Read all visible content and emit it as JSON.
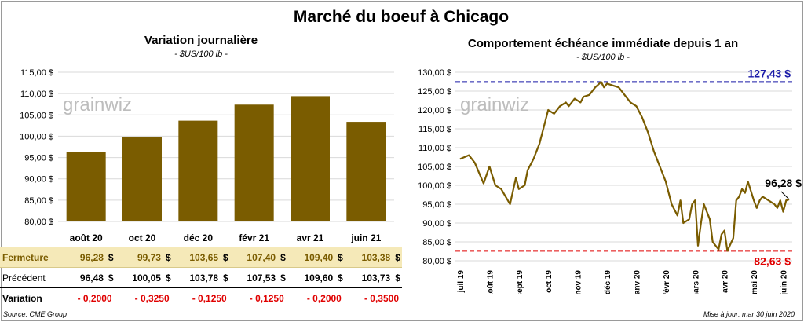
{
  "title": "Marché du boeuf à Chicago",
  "left": {
    "title": "Variation  journalière",
    "unit": "- $US/100 lb -"
  },
  "right": {
    "title": "Comportement  échéance immédiate depuis 1 an",
    "unit": "- $US/100 lb -"
  },
  "watermark": "grainwiz",
  "table": {
    "rows": [
      {
        "label": "Fermeture",
        "values": [
          "96,28",
          "99,73",
          "103,65",
          "107,40",
          "109,40",
          "103,38"
        ],
        "currency": "$"
      },
      {
        "label": "Précédent",
        "values": [
          "96,48",
          "100,05",
          "103,78",
          "107,53",
          "109,60",
          "103,73"
        ],
        "currency": "$"
      },
      {
        "label": "Variation",
        "values": [
          "- 0,2000",
          "- 0,3250",
          "- 0,1250",
          "- 0,1250",
          "- 0,2000",
          "- 0,3500"
        ],
        "currency": ""
      }
    ]
  },
  "footer": {
    "source": "Source: CME Group",
    "update": "Mise à jour: mar 30 juin 2020"
  },
  "colors": {
    "series": "#7a5c00",
    "max_line": "#1a1aa8",
    "min_line": "#e00000"
  },
  "chart_data": [
    {
      "type": "bar",
      "title": "Variation  journalière",
      "ylabel": "- $US/100 lb -",
      "categories": [
        "août 20",
        "oct 20",
        "déc 20",
        "févr 21",
        "avr 21",
        "juin 21"
      ],
      "values": [
        96.28,
        99.73,
        103.65,
        107.4,
        109.4,
        103.38
      ],
      "ylim": [
        80,
        115
      ],
      "yticks": [
        "80,00 $",
        "85,00 $",
        "90,00 $",
        "95,00 $",
        "100,00 $",
        "105,00 $",
        "110,00 $",
        "115,00 $"
      ],
      "grid": true
    },
    {
      "type": "line",
      "title": "Comportement  échéance immédiate depuis 1 an",
      "ylabel": "- $US/100 lb -",
      "ylim": [
        80,
        130
      ],
      "yticks": [
        "80,00 $",
        "85,00 $",
        "90,00 $",
        "95,00 $",
        "100,00 $",
        "105,00 $",
        "110,00 $",
        "115,00 $",
        "120,00 $",
        "125,00 $",
        "130,00 $"
      ],
      "xticks": [
        "juil 19",
        "août 19",
        "sept 19",
        "oct 19",
        "nov 19",
        "déc 19",
        "janv 20",
        "févr 20",
        "mars 20",
        "avr 20",
        "mai 20",
        "juin 20"
      ],
      "max": {
        "value": 127.43,
        "label": "127,43 $"
      },
      "min": {
        "value": 82.63,
        "label": "82,63 $"
      },
      "last": {
        "value": 96.28,
        "label": "96,28 $"
      },
      "grid": true,
      "x": [
        0,
        0.3,
        0.5,
        0.8,
        1.0,
        1.2,
        1.4,
        1.7,
        1.9,
        2.0,
        2.2,
        2.3,
        2.5,
        2.7,
        2.9,
        3.0,
        3.2,
        3.4,
        3.6,
        3.7,
        3.9,
        4.1,
        4.2,
        4.4,
        4.6,
        4.8,
        4.9,
        5.0,
        5.2,
        5.4,
        5.6,
        5.8,
        6.0,
        6.2,
        6.4,
        6.6,
        6.8,
        7.0,
        7.2,
        7.4,
        7.5,
        7.6,
        7.8,
        7.9,
        8.0,
        8.1,
        8.2,
        8.3,
        8.5,
        8.6,
        8.8,
        8.9,
        9.0,
        9.1,
        9.3,
        9.4,
        9.5,
        9.6,
        9.7,
        9.8,
        10.0,
        10.1,
        10.2,
        10.3,
        10.5,
        10.7,
        10.8,
        10.9,
        11.0,
        11.1,
        11.2
      ],
      "y": [
        107,
        108,
        106,
        100.5,
        105,
        100,
        99,
        95,
        102,
        99,
        100,
        104,
        107,
        111,
        117,
        120,
        119,
        121,
        122,
        121,
        123,
        122,
        123.5,
        124,
        126,
        127.43,
        126,
        127,
        126.5,
        126,
        124,
        122,
        121,
        118,
        114,
        109,
        105,
        101,
        95,
        92,
        96,
        90,
        91,
        95,
        96,
        84,
        90,
        95,
        91,
        85,
        83,
        87,
        88,
        82.63,
        86,
        96,
        97,
        99,
        98,
        101,
        96,
        94,
        96,
        97,
        96,
        95,
        94,
        96,
        93,
        96,
        96.28
      ]
    }
  ]
}
